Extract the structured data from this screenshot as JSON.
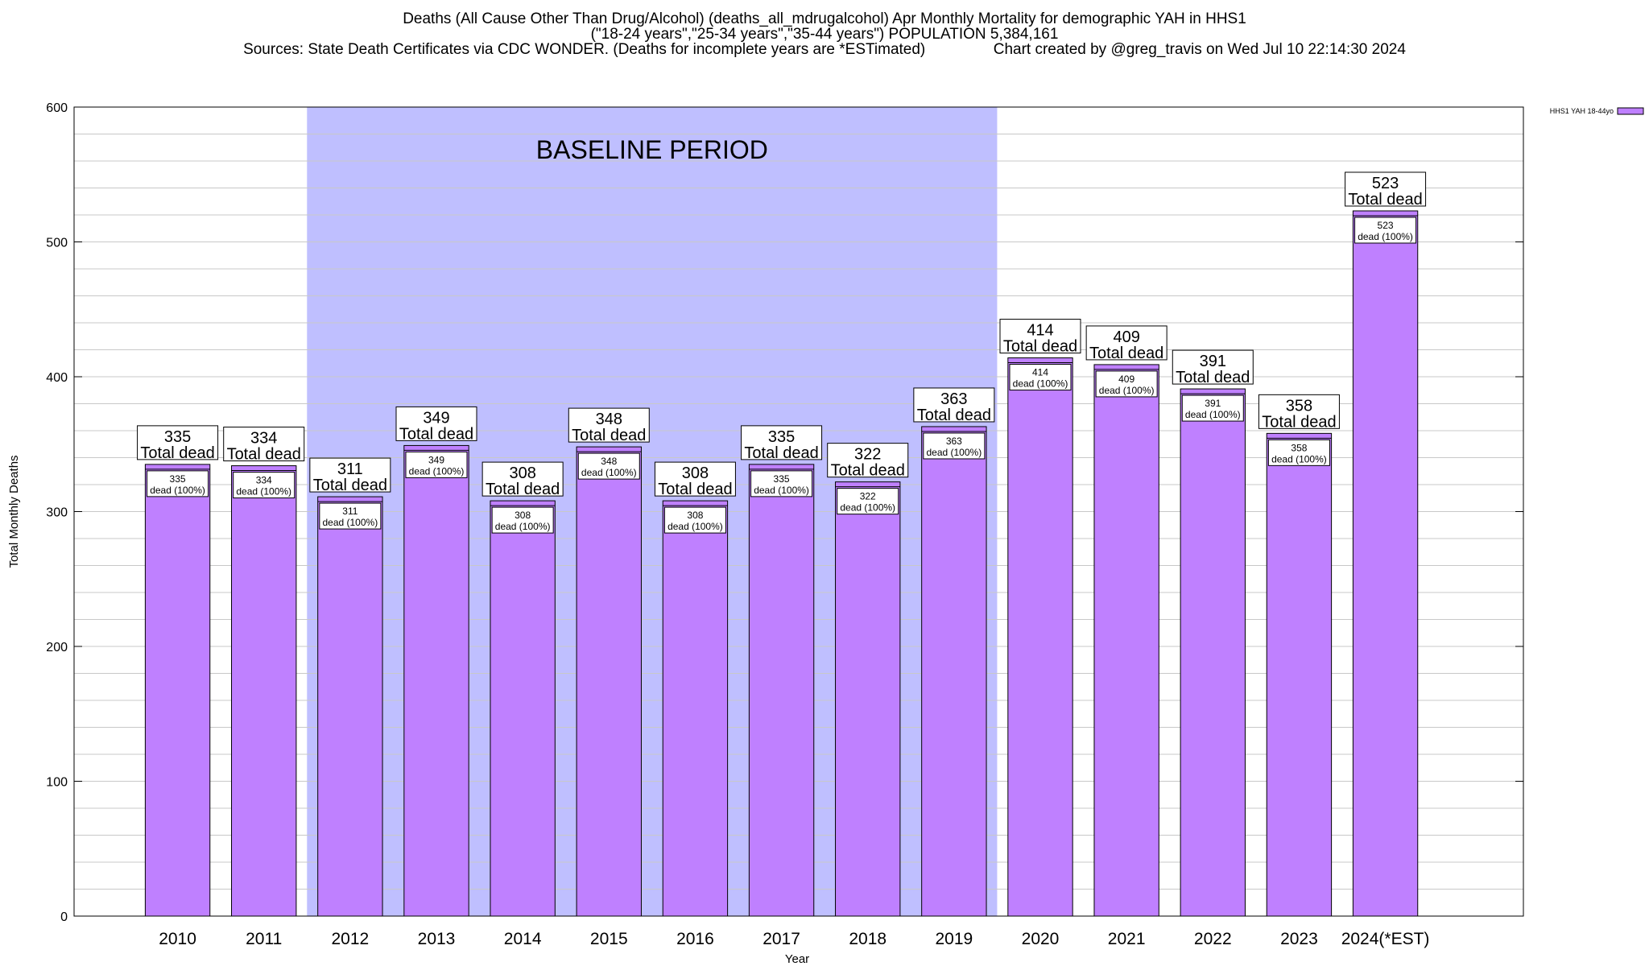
{
  "title_lines": [
    "Deaths (All Cause Other Than Drug/Alcohol) (deaths_all_mdrugalcohol) Apr Monthly Mortality for demographic YAH in HHS1",
    "(\"18-24 years\",\"25-34 years\",\"35-44 years\") POPULATION 5,384,161",
    "Sources: State Death Certificates via CDC WONDER. (Deaths for incomplete years are *ESTimated)                Chart created by @greg_travis on Wed Jul 10 22:14:30 2024"
  ],
  "chart_data": {
    "type": "bar",
    "categories": [
      "2010",
      "2011",
      "2012",
      "2013",
      "2014",
      "2015",
      "2016",
      "2017",
      "2018",
      "2019",
      "2020",
      "2021",
      "2022",
      "2023",
      "2024(*EST)"
    ],
    "series": [
      {
        "name": "HHS1 YAH 18-44yo",
        "color": "#bf80ff",
        "values": [
          335,
          334,
          311,
          349,
          308,
          348,
          308,
          335,
          322,
          363,
          414,
          409,
          391,
          358,
          523
        ]
      }
    ],
    "xlabel": "Year",
    "ylabel": "Total Monthly Deaths",
    "ylim": [
      0,
      600
    ],
    "yticks": [
      0,
      100,
      200,
      300,
      400,
      500,
      600
    ],
    "minor_gridline_step": 20,
    "grid": true,
    "legend_position": "top-right outside",
    "bar_top_label_line2": "Total dead",
    "bar_inner_label_line2": "dead (100%)",
    "baseline_period": {
      "label": "BASELINE PERIOD",
      "from_category": "2012",
      "to_category": "2019",
      "color": "#bfbfff"
    }
  }
}
